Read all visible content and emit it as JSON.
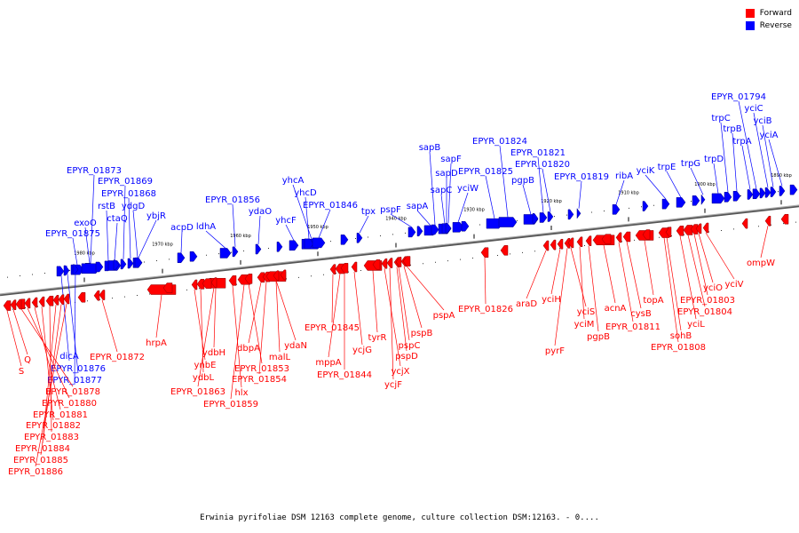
{
  "legend": [
    {
      "label": "Forward",
      "color": "#ff0000"
    },
    {
      "label": "Reverse",
      "color": "#0000ff"
    }
  ],
  "caption": "Erwinia pyrifoliae DSM 12163 complete genome, culture collection DSM:12163. - 0....",
  "ticks": [
    "1980 kbp",
    "1970 kbp",
    "1960 kbp",
    "1950 kbp",
    "1940 kbp",
    "1930 kbp",
    "1920 kbp",
    "1910 kbp",
    "1900 kbp",
    "1890 kbp"
  ],
  "colors": {
    "forward": "#ff0000",
    "reverse": "#0000ff",
    "backbone": "#808080"
  },
  "reverse_genes": [
    "EPYR_01875",
    "exoO",
    "EPYR_01873",
    "rstB",
    "ctaQ",
    "EPYR_01869",
    "EPYR_01868",
    "ydgD",
    "ybjR",
    "acpD",
    "ldhA",
    "EPYR_01856",
    "ydaO",
    "yhcF",
    "yhcA",
    "yhcD",
    "EPYR_01846",
    "tpx",
    "pspF",
    "sapA",
    "sapB",
    "sapC",
    "sapD",
    "sapF",
    "yciW",
    "EPYR_01825",
    "EPYR_01824",
    "pgpB",
    "EPYR_01821",
    "EPYR_01820",
    "EPYR_01819",
    "ribA",
    "yciK",
    "trpE",
    "trpG",
    "trpD",
    "trpC",
    "trpB",
    "trpA",
    "EPYR_01794",
    "yciC",
    "yciB",
    "yciA",
    "dicA",
    "EPYR_01876",
    "EPYR_01877"
  ],
  "forward_genes": [
    "S",
    "Q",
    "EPYR_01878",
    "EPYR_01880",
    "EPYR_01881",
    "EPYR_01882",
    "EPYR_01883",
    "EPYR_01884",
    "EPYR_01885",
    "EPYR_01886",
    "EPYR_01872",
    "hrpA",
    "ynbE",
    "ydbL",
    "ydbH",
    "EPYR_01863",
    "hlx",
    "EPYR_01859",
    "dbpA",
    "EPYR_01853",
    "EPYR_01854",
    "malL",
    "ydaN",
    "EPYR_01845",
    "mppA",
    "EPYR_01844",
    "ycjG",
    "tyrR",
    "ycjX",
    "ycjF",
    "pspD",
    "pspC",
    "pspB",
    "pspA",
    "EPYR_01826",
    "araD",
    "yciH",
    "pyrF",
    "yciS",
    "yciM",
    "pgpB",
    "acnA",
    "EPYR_01811",
    "cysB",
    "topA",
    "sohB",
    "EPYR_01808",
    "yciL",
    "EPYR_01804",
    "EPYR_01803",
    "yciO",
    "yciV",
    "ompW"
  ]
}
